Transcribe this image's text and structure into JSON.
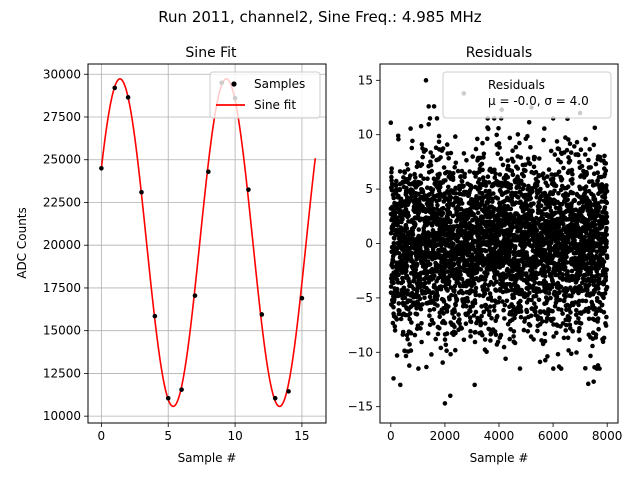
{
  "figure_title": "Run 2011, channel2, Sine Freq.: 4.985 MHz",
  "chart_data": [
    {
      "type": "line",
      "title": "Sine Fit",
      "xlabel": "Sample #",
      "ylabel": "ADC Counts",
      "xlim": [
        -1.0,
        16.8
      ],
      "ylim": [
        9600,
        30600
      ],
      "xticks": [
        0,
        5,
        10,
        15
      ],
      "yticks": [
        10000,
        12500,
        15000,
        17500,
        20000,
        22500,
        25000,
        27500,
        30000
      ],
      "xtick_labels": [
        "0",
        "5",
        "10",
        "15"
      ],
      "ytick_labels": [
        "10000",
        "12500",
        "15000",
        "17500",
        "20000",
        "22500",
        "25000",
        "27500",
        "30000"
      ],
      "grid": true,
      "legend_position": "top-right",
      "series": [
        {
          "name": "Samples",
          "kind": "scatter",
          "color": "#000000",
          "x": [
            0,
            1,
            2,
            3,
            4,
            5,
            6,
            7,
            8,
            9,
            10,
            11,
            12,
            13,
            14,
            15
          ],
          "y": [
            24500,
            29200,
            28650,
            23100,
            15850,
            11050,
            11550,
            17050,
            24300,
            29500,
            28600,
            23250,
            15950,
            11050,
            11450,
            16900
          ]
        },
        {
          "name": "Sine fit",
          "kind": "line",
          "color": "#ff0000",
          "model": {
            "offset": 20150,
            "amplitude": 9580,
            "period": 7.956,
            "phase": 0.472,
            "x_start": 0,
            "x_end": 16
          }
        }
      ]
    },
    {
      "type": "scatter",
      "title": "Residuals",
      "xlabel": "Sample #",
      "xlim": [
        -400,
        8400
      ],
      "ylim": [
        -16.5,
        16.5
      ],
      "xticks": [
        0,
        2000,
        4000,
        6000,
        8000
      ],
      "yticks": [
        -15,
        -10,
        -5,
        0,
        5,
        10,
        15
      ],
      "xtick_labels": [
        "0",
        "2000",
        "4000",
        "6000",
        "8000"
      ],
      "ytick_labels": [
        "−15",
        "−10",
        "−5",
        "0",
        "5",
        "10",
        "15"
      ],
      "grid": false,
      "legend_position": "top-right",
      "legend": {
        "label": "Residuals",
        "stats": "μ = -0.0, σ = 4.0"
      },
      "series": [
        {
          "name": "Residuals",
          "color": "#000000",
          "n_points": 8000,
          "mean": 0.0,
          "std": 4.0,
          "outliers": [
            {
              "x": 1300,
              "y": 15.0
            },
            {
              "x": 2700,
              "y": 13.8
            },
            {
              "x": 1400,
              "y": 12.6
            },
            {
              "x": 1600,
              "y": 12.6
            },
            {
              "x": 2000,
              "y": -14.7
            },
            {
              "x": 2200,
              "y": -14.0
            },
            {
              "x": 3100,
              "y": -13.0
            },
            {
              "x": 7300,
              "y": -12.9
            },
            {
              "x": 7500,
              "y": -12.7
            },
            {
              "x": 4100,
              "y": 12.3
            },
            {
              "x": 5200,
              "y": 12.5
            },
            {
              "x": 7000,
              "y": 12.0
            },
            {
              "x": 100,
              "y": -12.4
            },
            {
              "x": 1500,
              "y": -10.2
            },
            {
              "x": 6300,
              "y": -11.5
            },
            {
              "x": 350,
              "y": -13.0
            }
          ]
        }
      ]
    }
  ]
}
